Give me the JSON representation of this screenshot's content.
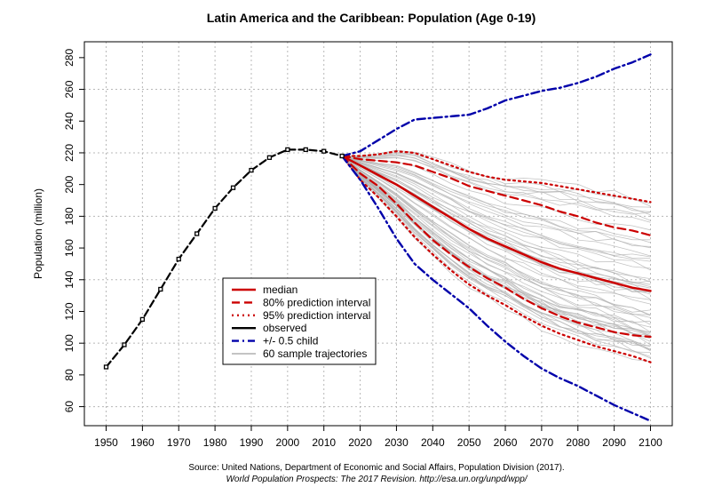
{
  "chart_data": {
    "type": "line",
    "title": "Latin America and the Caribbean: Population (Age 0-19)",
    "ylabel": "Population (million)",
    "xlabel": "",
    "xlim": [
      1944,
      2106
    ],
    "ylim": [
      48,
      290
    ],
    "x_ticks": [
      1950,
      1960,
      1970,
      1980,
      1990,
      2000,
      2010,
      2020,
      2030,
      2040,
      2050,
      2060,
      2070,
      2080,
      2090,
      2100
    ],
    "y_ticks": [
      60,
      80,
      100,
      120,
      140,
      160,
      180,
      200,
      220,
      240,
      260,
      280
    ],
    "grid": true,
    "legend_position": "center-left",
    "colors": {
      "median": "#cc0000",
      "pi80": "#cc0000",
      "pi95": "#cc0000",
      "observed": "#000000",
      "half_child": "#0000aa",
      "trajectories": "#b0b0b0",
      "grid": "#b8b8b8"
    },
    "series": [
      {
        "name": "observed",
        "x": [
          1950,
          1955,
          1960,
          1965,
          1970,
          1975,
          1980,
          1985,
          1990,
          1995,
          2000,
          2005,
          2010,
          2015
        ],
        "y": [
          85,
          99,
          115,
          134,
          153,
          169,
          185,
          198,
          209,
          217,
          222,
          222,
          221,
          218
        ]
      },
      {
        "name": "median",
        "x": [
          2015,
          2020,
          2025,
          2030,
          2035,
          2040,
          2045,
          2050,
          2055,
          2060,
          2065,
          2070,
          2075,
          2080,
          2085,
          2090,
          2095,
          2100
        ],
        "y": [
          218,
          212,
          206,
          200,
          193,
          186,
          179,
          172,
          166,
          161,
          156,
          151,
          147,
          144,
          141,
          138,
          135,
          133
        ]
      },
      {
        "name": "80% prediction interval (upper)",
        "x": [
          2015,
          2020,
          2025,
          2030,
          2035,
          2040,
          2045,
          2050,
          2055,
          2060,
          2065,
          2070,
          2075,
          2080,
          2085,
          2090,
          2095,
          2100
        ],
        "y": [
          218,
          216,
          215,
          214,
          212,
          208,
          204,
          199,
          196,
          193,
          190,
          187,
          183,
          180,
          176,
          173,
          171,
          168
        ]
      },
      {
        "name": "80% prediction interval (lower)",
        "x": [
          2015,
          2020,
          2025,
          2030,
          2035,
          2040,
          2045,
          2050,
          2055,
          2060,
          2065,
          2070,
          2075,
          2080,
          2085,
          2090,
          2095,
          2100
        ],
        "y": [
          218,
          207,
          199,
          188,
          176,
          165,
          156,
          148,
          141,
          135,
          128,
          122,
          117,
          113,
          110,
          107,
          105,
          104
        ]
      },
      {
        "name": "95% prediction interval (upper)",
        "x": [
          2015,
          2020,
          2025,
          2030,
          2035,
          2040,
          2045,
          2050,
          2055,
          2060,
          2065,
          2070,
          2075,
          2080,
          2085,
          2090,
          2095,
          2100
        ],
        "y": [
          218,
          218,
          219,
          221,
          220,
          216,
          212,
          208,
          205,
          203,
          202,
          201,
          199,
          197,
          195,
          193,
          191,
          189
        ]
      },
      {
        "name": "95% prediction interval (lower)",
        "x": [
          2015,
          2020,
          2025,
          2030,
          2035,
          2040,
          2045,
          2050,
          2055,
          2060,
          2065,
          2070,
          2075,
          2080,
          2085,
          2090,
          2095,
          2100
        ],
        "y": [
          218,
          203,
          192,
          180,
          167,
          156,
          146,
          137,
          130,
          124,
          117,
          111,
          106,
          102,
          98,
          95,
          92,
          88
        ]
      },
      {
        "name": "+/- 0.5 child (upper)",
        "x": [
          2015,
          2020,
          2025,
          2030,
          2035,
          2040,
          2045,
          2050,
          2055,
          2060,
          2065,
          2070,
          2075,
          2080,
          2085,
          2090,
          2095,
          2100
        ],
        "y": [
          218,
          221,
          228,
          235,
          241,
          242,
          243,
          244,
          248,
          253,
          256,
          259,
          261,
          264,
          268,
          273,
          277,
          282
        ]
      },
      {
        "name": "+/- 0.5 child (lower)",
        "x": [
          2015,
          2020,
          2025,
          2030,
          2035,
          2040,
          2045,
          2050,
          2055,
          2060,
          2065,
          2070,
          2075,
          2080,
          2085,
          2090,
          2095,
          2100
        ],
        "y": [
          218,
          203,
          185,
          166,
          150,
          140,
          131,
          122,
          111,
          101,
          92,
          84,
          78,
          73,
          67,
          61,
          56,
          51
        ]
      }
    ],
    "legend": [
      {
        "label": "median",
        "key": "median",
        "style": "solid"
      },
      {
        "label": "80% prediction interval",
        "key": "pi80",
        "style": "dashed"
      },
      {
        "label": "95% prediction interval",
        "key": "pi95",
        "style": "dotted"
      },
      {
        "label": "observed",
        "key": "observed",
        "style": "solid"
      },
      {
        "label": "+/- 0.5 child",
        "key": "half_child",
        "style": "dashdot"
      },
      {
        "label": "60 sample trajectories",
        "key": "trajectories",
        "style": "solid"
      }
    ],
    "source_line1": "Source: United Nations, Department of Economic and Social Affairs, Population Division (2017).",
    "source_line2": "World Population Prospects: The 2017 Revision. http://esa.un.org/unpd/wpp/"
  }
}
